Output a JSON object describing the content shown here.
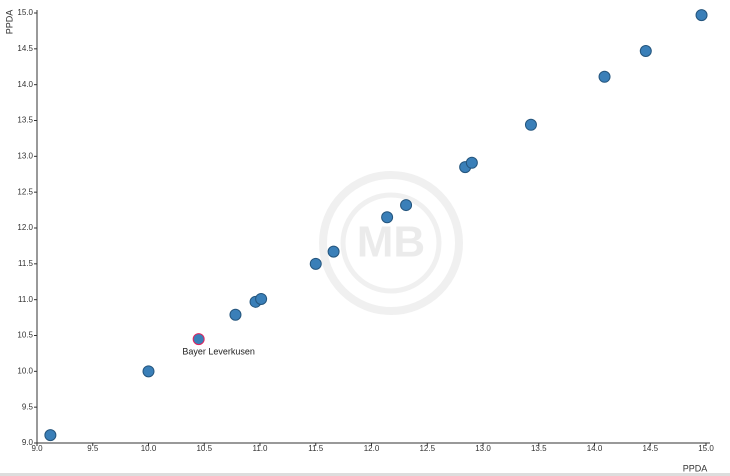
{
  "chart_data": {
    "type": "scatter",
    "xlabel": "PPDA",
    "ylabel": "PPDA",
    "watermark": "MB",
    "x": [
      9.12,
      10.0,
      10.45,
      10.78,
      10.96,
      11.01,
      11.5,
      11.66,
      12.14,
      12.31,
      12.84,
      12.9,
      13.43,
      14.09,
      14.46,
      14.96
    ],
    "y": [
      9.11,
      10.0,
      10.45,
      10.79,
      10.97,
      11.01,
      11.5,
      11.67,
      12.15,
      12.32,
      12.85,
      12.91,
      13.44,
      14.11,
      14.47,
      14.97
    ],
    "labels": [
      null,
      null,
      "Bayer Leverkusen",
      null,
      null,
      null,
      null,
      null,
      null,
      null,
      null,
      null,
      null,
      null,
      null,
      null
    ],
    "color": "#3a7fb8",
    "edge_color": "#24557d",
    "highlight_edge": "#e0245e",
    "xlim": [
      9.0,
      15.0
    ],
    "ylim": [
      9.0,
      15.0
    ],
    "xticks": [
      {
        "value": 9.0,
        "label": "9.0"
      },
      9.5,
      {
        "value": 10.0,
        "label": "10.0"
      },
      10.5,
      {
        "value": 11.0,
        "label": "11.0"
      },
      11.5,
      {
        "value": 12.0,
        "label": "12.0"
      },
      12.5,
      {
        "value": 13.0,
        "label": "13.0"
      },
      13.5,
      {
        "value": 14.0,
        "label": "14.0"
      },
      14.5,
      {
        "value": 15.0,
        "label": "15.0"
      }
    ],
    "yticks": [
      {
        "value": 9.0,
        "label": "9.0"
      },
      9.5,
      {
        "value": 10.0,
        "label": "10.0"
      },
      10.5,
      {
        "value": 11.0,
        "label": "11.0"
      },
      11.5,
      {
        "value": 12.0,
        "label": "12.0"
      },
      12.5,
      {
        "value": 13.0,
        "label": "13.0"
      },
      13.5,
      {
        "value": 14.0,
        "label": "14.0"
      },
      14.5,
      {
        "value": 15.0,
        "label": "15.0"
      }
    ],
    "grid": false
  }
}
